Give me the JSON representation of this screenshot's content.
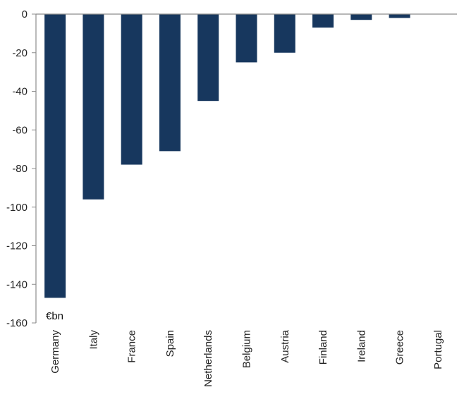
{
  "chart_data": {
    "type": "bar",
    "unit_label": "€bn",
    "categories": [
      "Germany",
      "Italy",
      "France",
      "Spain",
      "Netherlands",
      "Belgium",
      "Austria",
      "Finland",
      "Ireland",
      "Greece",
      "Portugal"
    ],
    "values": [
      -147,
      -96,
      -78,
      -71,
      -45,
      -25,
      -20,
      -7,
      -3,
      -2,
      0
    ],
    "ylim": [
      -160,
      0
    ],
    "yticks": [
      0,
      -20,
      -40,
      -60,
      -80,
      -100,
      -120,
      -140,
      -160
    ],
    "grid": false,
    "colors": {
      "bar": "#17375e",
      "axis": "#8c8c8c"
    }
  }
}
